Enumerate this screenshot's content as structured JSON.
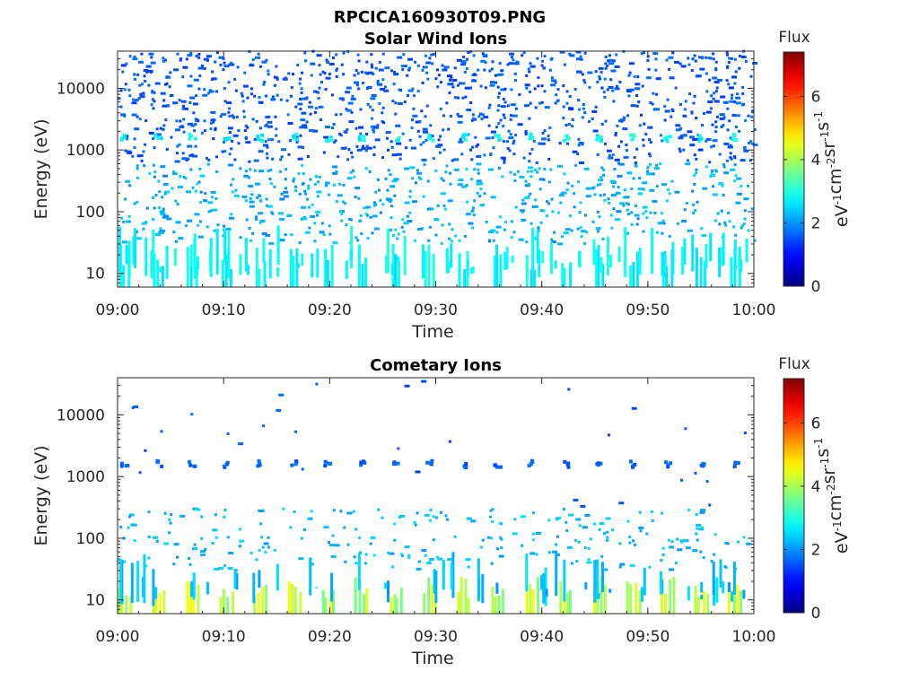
{
  "figure_title": "RPCICA160930T09.PNG",
  "chart_data": [
    {
      "type": "heatmap",
      "title": "Solar Wind Ions",
      "xlabel": "Time",
      "ylabel": "Energy (eV)",
      "yscale": "log",
      "x_ticks": [
        "09:00",
        "09:10",
        "09:20",
        "09:30",
        "09:40",
        "09:50",
        "10:00"
      ],
      "x_range": [
        "09:00",
        "10:00"
      ],
      "y_ticks": [
        10,
        100,
        1000,
        10000
      ],
      "y_tick_labels": [
        "10",
        "100",
        "1000",
        "10000"
      ],
      "ylim": [
        6,
        40000
      ],
      "colorbar": {
        "title": "Flux",
        "label": "eV-1cm-2sr-1s-1",
        "ticks": [
          0,
          2,
          4,
          6
        ],
        "range": [
          0,
          7.4
        ],
        "colormap": "jet"
      },
      "features": [
        {
          "energy_band_eV": [
            600,
            40000
          ],
          "flux_range": [
            1.3,
            1.8
          ],
          "density": "sparse scattered"
        },
        {
          "energy_band_eV": [
            1400,
            1800
          ],
          "flux_range": [
            2.5,
            3.2
          ],
          "density": "periodic bursts every ~3.2 min"
        },
        {
          "energy_band_eV": [
            30,
            600
          ],
          "flux_range": [
            1.9,
            2.5
          ],
          "density": "moderate scattered"
        },
        {
          "energy_band_eV": [
            6,
            30
          ],
          "flux_range": [
            2.5,
            3.0
          ],
          "density": "periodic vertical stripes"
        }
      ]
    },
    {
      "type": "heatmap",
      "title": "Cometary Ions",
      "xlabel": "Time",
      "ylabel": "Energy (eV)",
      "yscale": "log",
      "x_ticks": [
        "09:00",
        "09:10",
        "09:20",
        "09:30",
        "09:40",
        "09:50",
        "10:00"
      ],
      "x_range": [
        "09:00",
        "10:00"
      ],
      "y_ticks": [
        10,
        100,
        1000,
        10000
      ],
      "y_tick_labels": [
        "10",
        "100",
        "1000",
        "10000"
      ],
      "ylim": [
        6,
        40000
      ],
      "colorbar": {
        "title": "Flux",
        "label": "eV-1cm-2sr-1s-1",
        "ticks": [
          0,
          2,
          4,
          6
        ],
        "range": [
          0,
          7.4
        ],
        "colormap": "jet"
      },
      "features": [
        {
          "energy_band_eV": [
            300,
            40000
          ],
          "flux_range": [
            1.3,
            1.7
          ],
          "density": "very sparse"
        },
        {
          "energy_band_eV": [
            1400,
            1800
          ],
          "flux_range": [
            1.4,
            1.8
          ],
          "density": "periodic bursts"
        },
        {
          "energy_band_eV": [
            30,
            300
          ],
          "flux_range": [
            2.0,
            2.6
          ],
          "density": "moderate"
        },
        {
          "energy_band_eV": [
            6,
            25
          ],
          "flux_range": [
            3.6,
            4.6
          ],
          "density": "periodic bright columns every ~3.2 min"
        }
      ]
    }
  ]
}
